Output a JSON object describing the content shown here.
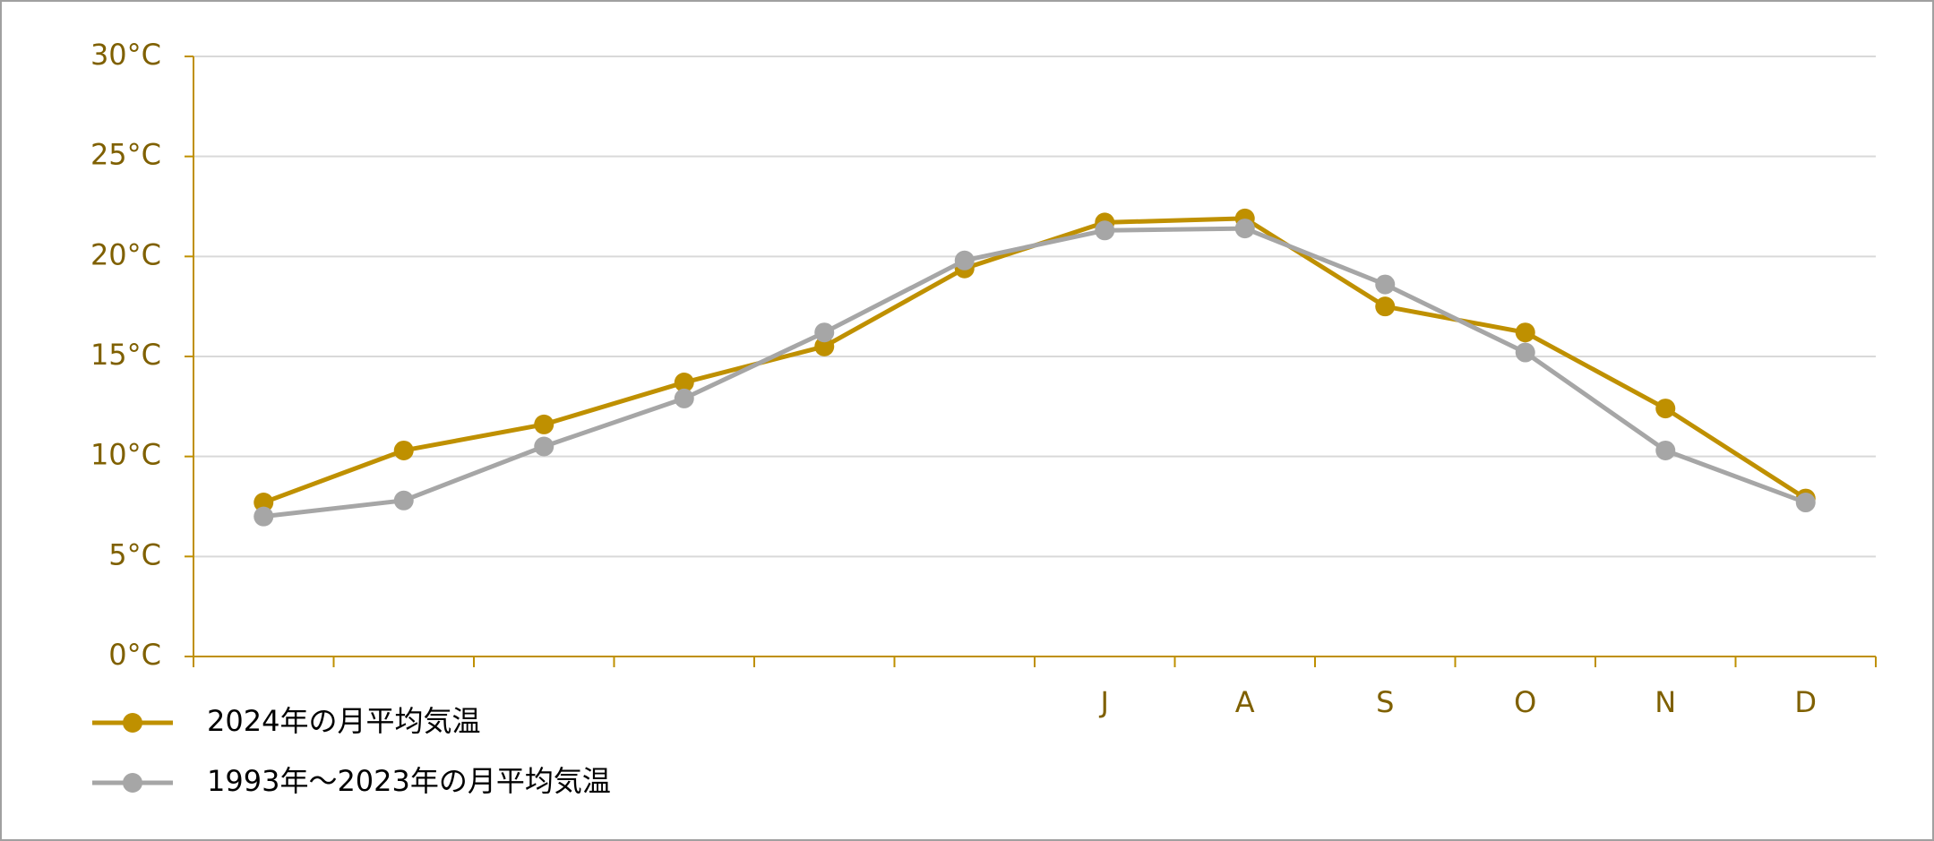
{
  "chart_data": {
    "type": "line",
    "categories": [
      null,
      null,
      null,
      null,
      null,
      null,
      "J",
      "A",
      "S",
      "O",
      "N",
      "D"
    ],
    "series": [
      {
        "name": "2024年の月平均気温",
        "color": "#bf9000",
        "values": [
          7.7,
          10.3,
          11.6,
          13.7,
          15.5,
          19.4,
          21.7,
          21.9,
          17.5,
          16.2,
          12.4,
          7.9
        ]
      },
      {
        "name": "1993年〜2023年の月平均気温",
        "color": "#a6a6a6",
        "values": [
          7.0,
          7.8,
          10.5,
          12.9,
          16.2,
          19.8,
          21.3,
          21.4,
          18.6,
          15.2,
          10.3,
          7.7
        ]
      }
    ],
    "ylim": [
      0,
      30
    ],
    "yticks": [
      {
        "value": 0,
        "label": "0°C"
      },
      {
        "value": 5,
        "label": "5°C"
      },
      {
        "value": 10,
        "label": "10°C"
      },
      {
        "value": 15,
        "label": "15°C"
      },
      {
        "value": 20,
        "label": "20°C"
      },
      {
        "value": 25,
        "label": "25°C"
      },
      {
        "value": 30,
        "label": "30°C"
      }
    ],
    "grid": true,
    "legend": "bottom-left",
    "axis_color": "#bf9000"
  }
}
